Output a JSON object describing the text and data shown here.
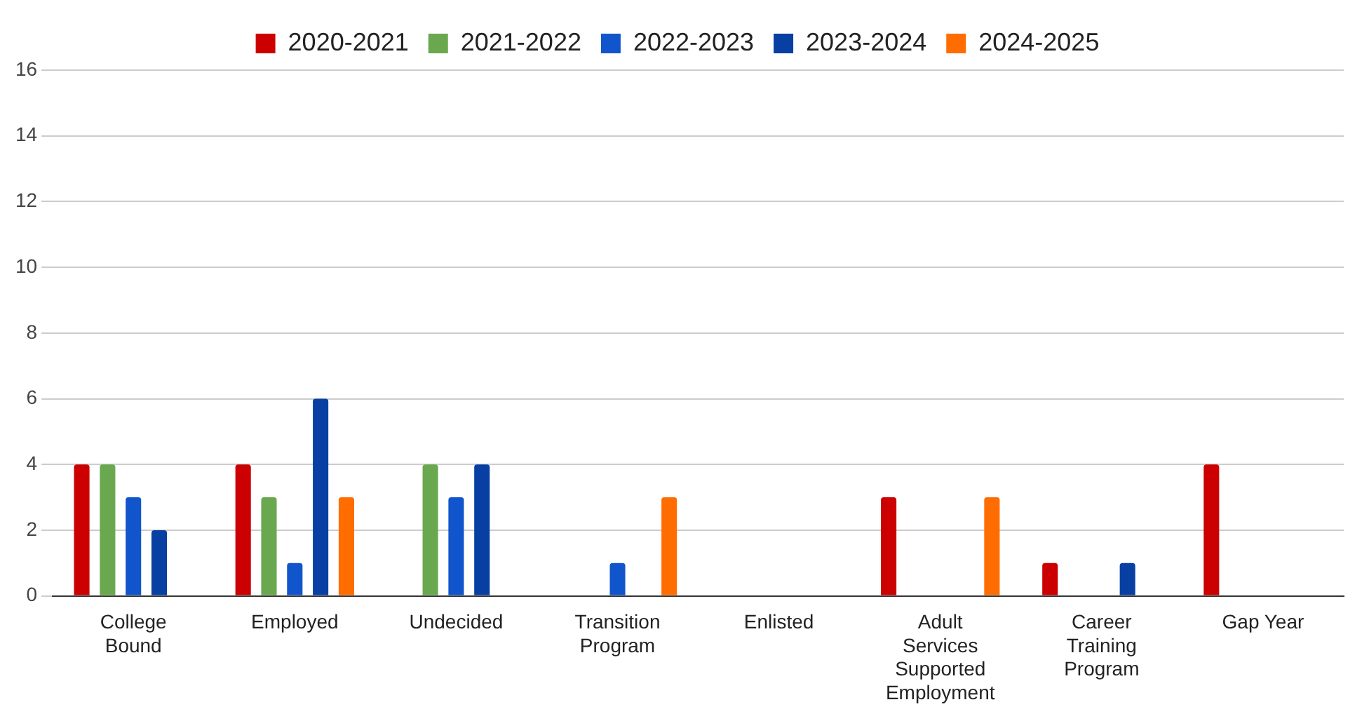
{
  "chart_data": {
    "type": "bar",
    "categories": [
      "College Bound",
      "Employed",
      "Undecided",
      "Transition Program",
      "Enlisted",
      "Adult Services Supported Employment",
      "Career Training Program",
      "Gap Year"
    ],
    "series": [
      {
        "name": "2020-2021",
        "color": "#cc0000",
        "values": [
          4,
          4,
          null,
          null,
          null,
          3,
          1,
          4
        ]
      },
      {
        "name": "2021-2022",
        "color": "#6aa84f",
        "values": [
          4,
          3,
          4,
          null,
          null,
          null,
          null,
          null
        ]
      },
      {
        "name": "2022-2023",
        "color": "#1155cc",
        "values": [
          3,
          1,
          3,
          1,
          null,
          null,
          null,
          null
        ]
      },
      {
        "name": "2023-2024",
        "color": "#073fa3",
        "values": [
          2,
          6,
          4,
          null,
          null,
          null,
          1,
          null
        ]
      },
      {
        "name": "2024-2025",
        "color": "#ff6d01",
        "values": [
          null,
          3,
          null,
          3,
          null,
          3,
          null,
          null
        ]
      }
    ],
    "ylim": [
      0,
      16
    ],
    "yticks": [
      0,
      2,
      4,
      6,
      8,
      10,
      12,
      14,
      16
    ],
    "grid": "y",
    "legend": "top"
  }
}
